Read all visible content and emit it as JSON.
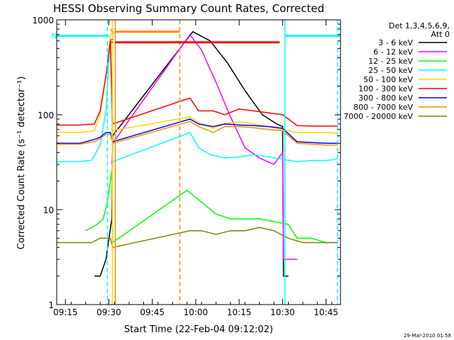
{
  "chart_data": {
    "type": "line",
    "title": "HESSI Observing Summary Count Rates, Corrected",
    "xlabel": "Start Time (22-Feb-04 09:12:02)",
    "ylabel": "Corrected Count Rate (s⁻¹ detector⁻¹)",
    "xlim_minutes": [
      12,
      54
    ],
    "x_ticks": [
      {
        "m": 15,
        "label": "09:15"
      },
      {
        "m": 30,
        "label": "09:30"
      },
      {
        "m": 45,
        "label": "09:45"
      },
      {
        "m": 60,
        "label": "10:00"
      },
      {
        "m": 75,
        "label": "10:15"
      },
      {
        "m": 90,
        "label": "10:30"
      },
      {
        "m": 105,
        "label": "10:45"
      }
    ],
    "y_scale": "log",
    "ylim": [
      1,
      1000
    ],
    "y_ticks": [
      {
        "v": 1,
        "label": "1"
      },
      {
        "v": 10,
        "label": "10"
      },
      {
        "v": 100,
        "label": "100"
      },
      {
        "v": 1000,
        "label": "1000"
      }
    ],
    "legend": {
      "position": "top-right",
      "header": [
        "Det 1,3,4,5,6,9,",
        "Att 0"
      ]
    },
    "series": [
      {
        "name": "3 - 6 keV",
        "color": "#000000",
        "points": [
          [
            25,
            2
          ],
          [
            27,
            2
          ],
          [
            29,
            3
          ],
          [
            31,
            8
          ],
          [
            31.3,
            60
          ],
          [
            59,
            750
          ],
          [
            65,
            600
          ],
          [
            71,
            350
          ],
          [
            77,
            180
          ],
          [
            83,
            100
          ],
          [
            88,
            80
          ],
          [
            90,
            75
          ],
          [
            90.3,
            2
          ],
          [
            92,
            2
          ]
        ]
      },
      {
        "name": "6 - 12 keV",
        "color": "#ff00ff",
        "points": [
          [
            31,
            30
          ],
          [
            31.3,
            50
          ],
          [
            58,
            700
          ],
          [
            62,
            480
          ],
          [
            67,
            220
          ],
          [
            72,
            95
          ],
          [
            77,
            45
          ],
          [
            82,
            35
          ],
          [
            87,
            30
          ],
          [
            90,
            40
          ],
          [
            90.3,
            3
          ],
          [
            92,
            3
          ],
          [
            95,
            3
          ]
        ]
      },
      {
        "name": "12 - 25 keV",
        "color": "#00ff00",
        "points": [
          [
            22,
            6
          ],
          [
            26,
            7
          ],
          [
            28,
            8
          ],
          [
            29.5,
            12
          ],
          [
            31,
            26
          ],
          [
            31.3,
            4.5
          ],
          [
            57,
            16
          ],
          [
            62,
            12
          ],
          [
            67,
            9
          ],
          [
            72,
            8
          ],
          [
            77,
            8
          ],
          [
            82,
            8
          ],
          [
            87,
            7.5
          ],
          [
            92,
            7
          ],
          [
            95,
            5
          ],
          [
            100,
            5
          ],
          [
            105,
            4.5
          ],
          [
            109,
            4.5
          ]
        ]
      },
      {
        "name": "25 - 50 keV",
        "color": "#00ffff",
        "points": [
          [
            12,
            32
          ],
          [
            18,
            32
          ],
          [
            24,
            33
          ],
          [
            27,
            48
          ],
          [
            29,
            110
          ],
          [
            30.5,
            650
          ],
          [
            31.3,
            32
          ],
          [
            58,
            65
          ],
          [
            61,
            45
          ],
          [
            65,
            38
          ],
          [
            70,
            35
          ],
          [
            75,
            36
          ],
          [
            80,
            38
          ],
          [
            85,
            36
          ],
          [
            90,
            34
          ],
          [
            95,
            32
          ],
          [
            100,
            33
          ],
          [
            105,
            33
          ],
          [
            109,
            34
          ]
        ]
      },
      {
        "name": "50 - 100 keV",
        "color": "#ffd700",
        "points": [
          [
            12,
            65
          ],
          [
            20,
            65
          ],
          [
            25,
            68
          ],
          [
            27,
            100
          ],
          [
            29,
            250
          ],
          [
            30.5,
            700
          ],
          [
            31.3,
            68
          ],
          [
            58,
            95
          ],
          [
            62,
            80
          ],
          [
            66,
            72
          ],
          [
            70,
            80
          ],
          [
            75,
            85
          ],
          [
            80,
            80
          ],
          [
            85,
            75
          ],
          [
            90,
            70
          ],
          [
            95,
            65
          ],
          [
            100,
            65
          ],
          [
            105,
            65
          ],
          [
            109,
            64
          ]
        ]
      },
      {
        "name": "100 - 300 keV",
        "color": "#ff0000",
        "points": [
          [
            12,
            78
          ],
          [
            20,
            78
          ],
          [
            25,
            80
          ],
          [
            27,
            110
          ],
          [
            29,
            260
          ],
          [
            30.5,
            600
          ],
          [
            31.3,
            80
          ],
          [
            58,
            150
          ],
          [
            61,
            110
          ],
          [
            66,
            110
          ],
          [
            70,
            100
          ],
          [
            75,
            115
          ],
          [
            80,
            110
          ],
          [
            85,
            105
          ],
          [
            90,
            100
          ],
          [
            95,
            77
          ],
          [
            100,
            76
          ],
          [
            105,
            76
          ],
          [
            109,
            76
          ]
        ]
      },
      {
        "name": "300 - 800 keV",
        "color": "#0000ff",
        "points": [
          [
            12,
            50
          ],
          [
            20,
            50
          ],
          [
            25,
            55
          ],
          [
            27,
            58
          ],
          [
            29,
            65
          ],
          [
            30.5,
            65
          ],
          [
            31.3,
            52
          ],
          [
            58,
            90
          ],
          [
            61,
            80
          ],
          [
            66,
            75
          ],
          [
            70,
            80
          ],
          [
            75,
            78
          ],
          [
            80,
            77
          ],
          [
            85,
            75
          ],
          [
            90,
            72
          ],
          [
            95,
            52
          ],
          [
            100,
            51
          ],
          [
            105,
            50
          ],
          [
            109,
            50
          ]
        ]
      },
      {
        "name": "800 - 7000 keV",
        "color": "#ff8c00",
        "points": [
          [
            12,
            49
          ],
          [
            20,
            49
          ],
          [
            25,
            52
          ],
          [
            27,
            56
          ],
          [
            29,
            62
          ],
          [
            30.5,
            62
          ],
          [
            31.3,
            50
          ],
          [
            58,
            85
          ],
          [
            61,
            75
          ],
          [
            66,
            65
          ],
          [
            70,
            75
          ],
          [
            75,
            75
          ],
          [
            80,
            73
          ],
          [
            85,
            70
          ],
          [
            90,
            68
          ],
          [
            95,
            50
          ],
          [
            100,
            49
          ],
          [
            105,
            48
          ],
          [
            109,
            48
          ]
        ]
      },
      {
        "name": "7000 - 20000 keV",
        "color": "#808000",
        "points": [
          [
            12,
            4.5
          ],
          [
            18,
            4.5
          ],
          [
            24,
            4.5
          ],
          [
            27,
            5
          ],
          [
            29,
            5
          ],
          [
            30.5,
            5
          ],
          [
            31.3,
            4
          ],
          [
            58,
            6
          ],
          [
            62,
            6
          ],
          [
            67,
            5.5
          ],
          [
            72,
            6
          ],
          [
            77,
            6
          ],
          [
            82,
            6.5
          ],
          [
            87,
            6
          ],
          [
            92,
            5
          ],
          [
            97,
            4.5
          ],
          [
            102,
            4.5
          ],
          [
            107,
            4.5
          ],
          [
            109,
            4.5
          ]
        ]
      }
    ],
    "vertical_lines": [
      {
        "m": 29.5,
        "color": "#00ffff",
        "dash": true
      },
      {
        "m": 31.2,
        "color": "#ffd700",
        "dash": false
      },
      {
        "m": 32.2,
        "color": "#ff8c00",
        "dash": false
      },
      {
        "m": 54.5,
        "color": "#ff8c00",
        "dash": true
      },
      {
        "m": 90.8,
        "color": "#00ffff",
        "dash": false
      },
      {
        "m": 109,
        "color": "#00ffff",
        "dash": true
      }
    ],
    "flag_bars": [
      {
        "label": "S",
        "color": "#ff8c00",
        "from_m": 32.2,
        "to_m": 54.5,
        "y": 750
      },
      {
        "label": "N",
        "color": "#00ffff",
        "from_m": 12,
        "to_m": 30,
        "y": 680
      },
      {
        "label": "",
        "color": "#00ffff",
        "from_m": 91,
        "to_m": 110,
        "y": 680
      },
      {
        "label": "F",
        "color": "#ff0000",
        "from_m": 32.2,
        "to_m": 89,
        "y": 580
      }
    ],
    "footer_timestamp": "29-Mar-2010 01:58"
  }
}
